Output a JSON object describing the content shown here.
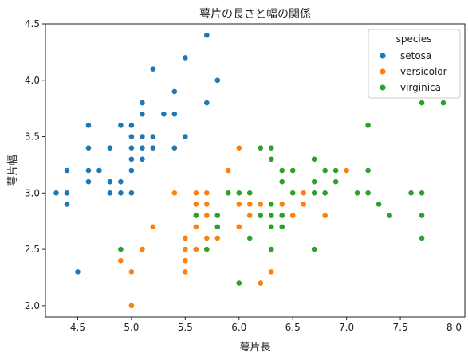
{
  "chart_data": {
    "type": "scatter",
    "title": "萼片の長さと幅の関係",
    "xlabel": "萼片長",
    "ylabel": "萼片幅",
    "xlim": [
      4.2,
      8.1
    ],
    "ylim": [
      1.9,
      4.5
    ],
    "xticks": [
      "4.5",
      "5.0",
      "5.5",
      "6.0",
      "6.5",
      "7.0",
      "7.5",
      "8.0"
    ],
    "yticks": [
      "2.0",
      "2.5",
      "3.0",
      "3.5",
      "4.0",
      "4.5"
    ],
    "grid": false,
    "legend": {
      "title": "species",
      "position": "top-right"
    },
    "series": [
      {
        "name": "setosa",
        "color": "#1f77b4",
        "points": [
          [
            4.3,
            3.0
          ],
          [
            4.4,
            2.9
          ],
          [
            4.4,
            3.0
          ],
          [
            4.4,
            3.2
          ],
          [
            4.5,
            2.3
          ],
          [
            4.6,
            3.1
          ],
          [
            4.6,
            3.2
          ],
          [
            4.6,
            3.4
          ],
          [
            4.6,
            3.6
          ],
          [
            4.7,
            3.2
          ],
          [
            4.8,
            3.0
          ],
          [
            4.8,
            3.1
          ],
          [
            4.8,
            3.4
          ],
          [
            4.9,
            3.0
          ],
          [
            4.9,
            3.1
          ],
          [
            4.9,
            3.6
          ],
          [
            5.0,
            3.0
          ],
          [
            5.0,
            3.2
          ],
          [
            5.0,
            3.3
          ],
          [
            5.0,
            3.4
          ],
          [
            5.0,
            3.5
          ],
          [
            5.0,
            3.6
          ],
          [
            5.1,
            3.3
          ],
          [
            5.1,
            3.4
          ],
          [
            5.1,
            3.5
          ],
          [
            5.1,
            3.7
          ],
          [
            5.1,
            3.8
          ],
          [
            5.2,
            3.4
          ],
          [
            5.2,
            3.5
          ],
          [
            5.2,
            4.1
          ],
          [
            5.3,
            3.7
          ],
          [
            5.4,
            3.4
          ],
          [
            5.4,
            3.7
          ],
          [
            5.4,
            3.9
          ],
          [
            5.5,
            3.5
          ],
          [
            5.5,
            4.2
          ],
          [
            5.7,
            3.8
          ],
          [
            5.7,
            4.4
          ],
          [
            5.8,
            4.0
          ]
        ]
      },
      {
        "name": "versicolor",
        "color": "#ff7f0e",
        "points": [
          [
            4.9,
            2.4
          ],
          [
            5.0,
            2.0
          ],
          [
            5.0,
            2.3
          ],
          [
            5.1,
            2.5
          ],
          [
            5.2,
            2.7
          ],
          [
            5.4,
            3.0
          ],
          [
            5.5,
            2.3
          ],
          [
            5.5,
            2.4
          ],
          [
            5.5,
            2.5
          ],
          [
            5.5,
            2.6
          ],
          [
            5.6,
            2.5
          ],
          [
            5.6,
            2.7
          ],
          [
            5.6,
            2.9
          ],
          [
            5.6,
            3.0
          ],
          [
            5.7,
            2.6
          ],
          [
            5.7,
            2.8
          ],
          [
            5.7,
            2.9
          ],
          [
            5.7,
            3.0
          ],
          [
            5.8,
            2.6
          ],
          [
            5.8,
            2.7
          ],
          [
            5.9,
            3.0
          ],
          [
            5.9,
            3.2
          ],
          [
            6.0,
            2.2
          ],
          [
            6.0,
            2.7
          ],
          [
            6.0,
            2.9
          ],
          [
            6.0,
            3.4
          ],
          [
            6.1,
            2.8
          ],
          [
            6.1,
            2.9
          ],
          [
            6.1,
            3.0
          ],
          [
            6.2,
            2.2
          ],
          [
            6.2,
            2.9
          ],
          [
            6.3,
            2.3
          ],
          [
            6.3,
            2.5
          ],
          [
            6.3,
            3.3
          ],
          [
            6.4,
            2.9
          ],
          [
            6.4,
            3.2
          ],
          [
            6.5,
            2.8
          ],
          [
            6.6,
            2.9
          ],
          [
            6.6,
            3.0
          ],
          [
            6.7,
            3.0
          ],
          [
            6.7,
            3.1
          ],
          [
            6.8,
            2.8
          ],
          [
            6.9,
            3.1
          ],
          [
            7.0,
            3.2
          ]
        ]
      },
      {
        "name": "virginica",
        "color": "#2ca02c",
        "points": [
          [
            4.9,
            2.5
          ],
          [
            5.6,
            2.8
          ],
          [
            5.7,
            2.5
          ],
          [
            5.8,
            2.7
          ],
          [
            5.8,
            2.8
          ],
          [
            5.9,
            3.0
          ],
          [
            6.0,
            2.2
          ],
          [
            6.0,
            3.0
          ],
          [
            6.1,
            2.6
          ],
          [
            6.1,
            3.0
          ],
          [
            6.2,
            2.8
          ],
          [
            6.2,
            3.4
          ],
          [
            6.3,
            2.5
          ],
          [
            6.3,
            2.7
          ],
          [
            6.3,
            2.8
          ],
          [
            6.3,
            2.9
          ],
          [
            6.3,
            3.3
          ],
          [
            6.3,
            3.4
          ],
          [
            6.4,
            2.7
          ],
          [
            6.4,
            2.8
          ],
          [
            6.4,
            3.1
          ],
          [
            6.4,
            3.2
          ],
          [
            6.5,
            3.0
          ],
          [
            6.5,
            3.2
          ],
          [
            6.7,
            2.5
          ],
          [
            6.7,
            3.0
          ],
          [
            6.7,
            3.1
          ],
          [
            6.7,
            3.3
          ],
          [
            6.8,
            3.0
          ],
          [
            6.8,
            3.2
          ],
          [
            6.9,
            3.1
          ],
          [
            6.9,
            3.2
          ],
          [
            7.1,
            3.0
          ],
          [
            7.2,
            3.0
          ],
          [
            7.2,
            3.2
          ],
          [
            7.2,
            3.6
          ],
          [
            7.3,
            2.9
          ],
          [
            7.4,
            2.8
          ],
          [
            7.6,
            3.0
          ],
          [
            7.7,
            2.6
          ],
          [
            7.7,
            2.8
          ],
          [
            7.7,
            3.0
          ],
          [
            7.7,
            3.8
          ],
          [
            7.9,
            3.8
          ]
        ]
      }
    ]
  }
}
